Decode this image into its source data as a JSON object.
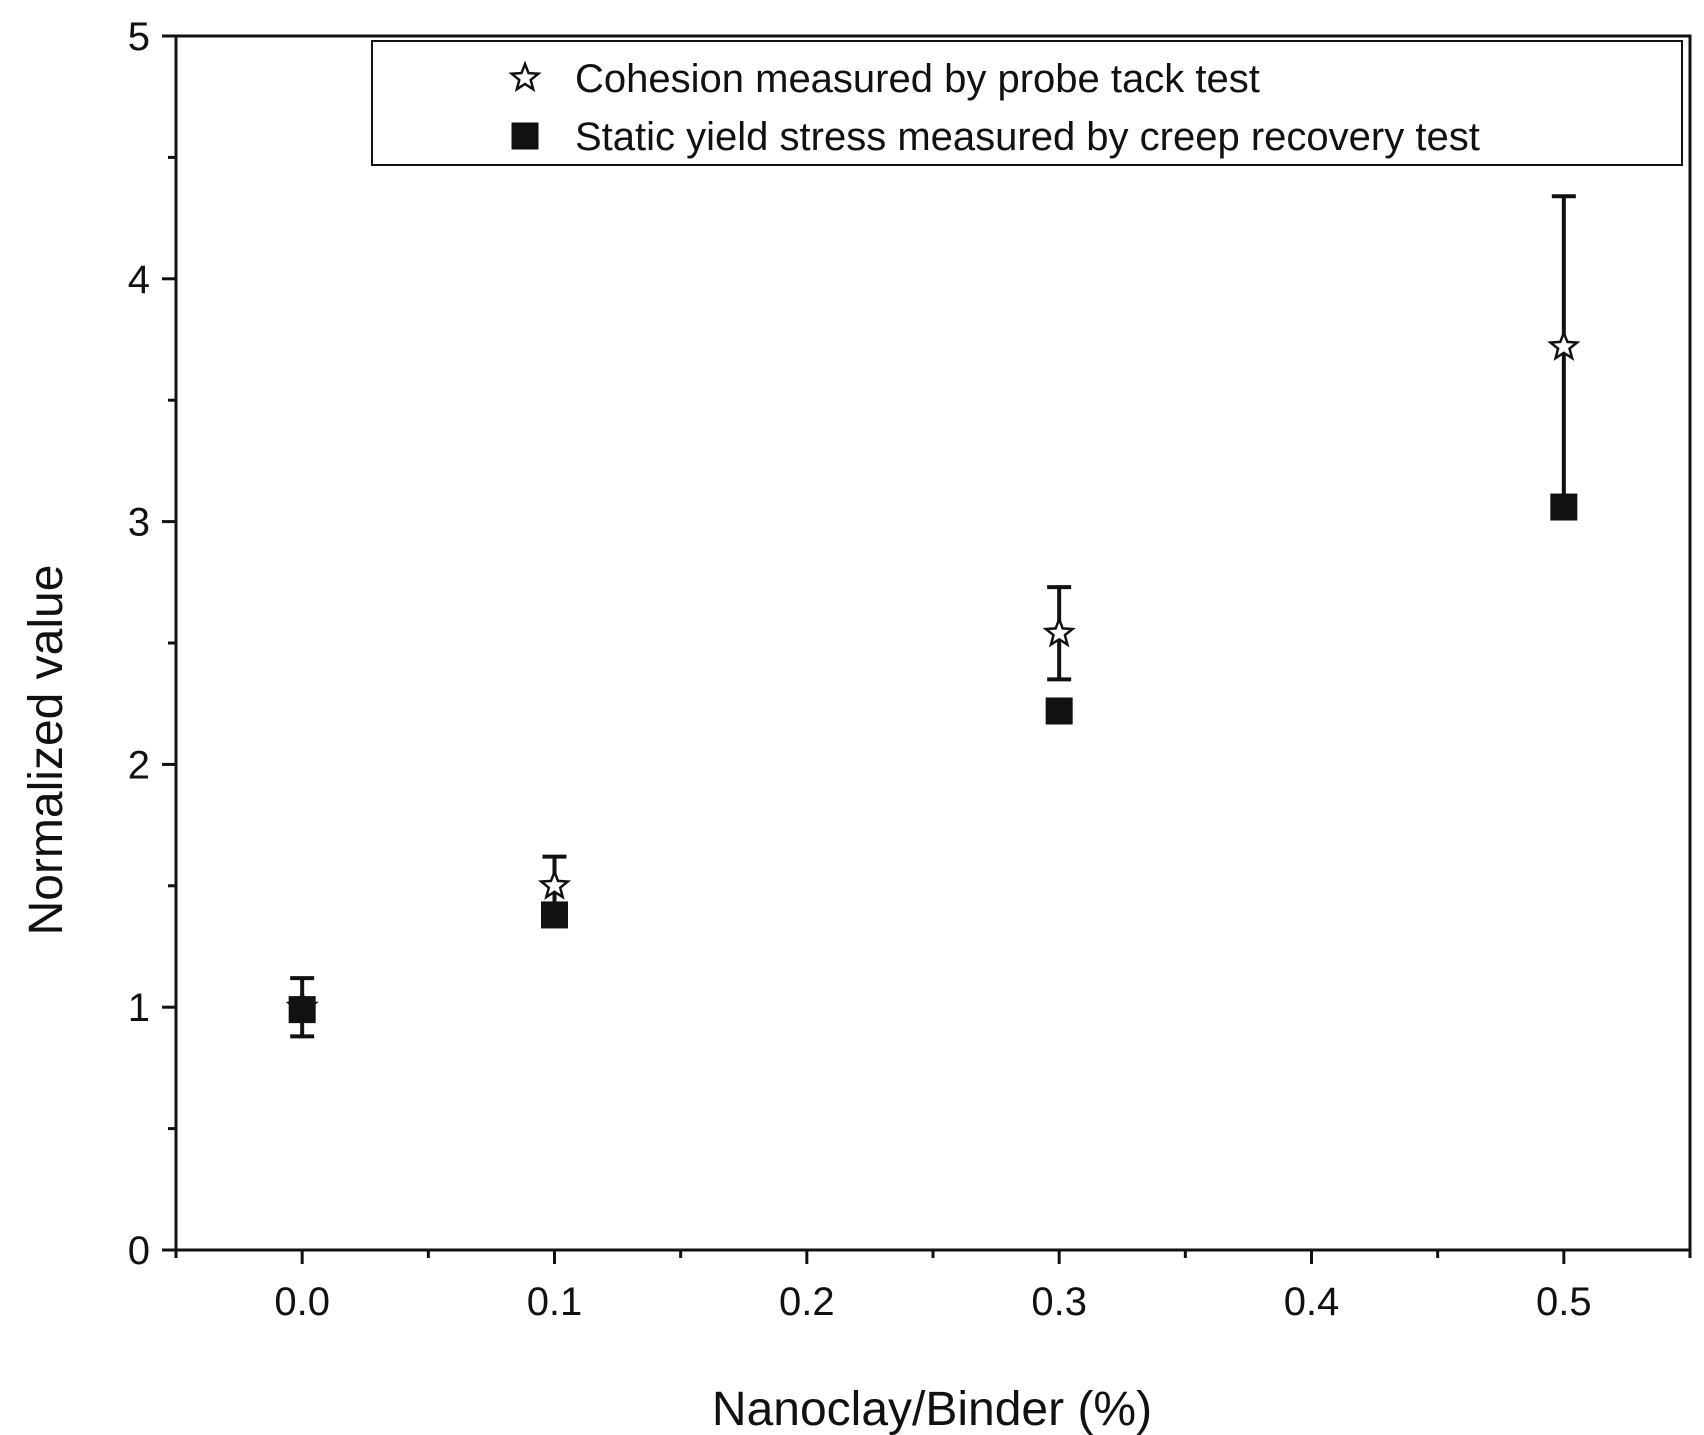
{
  "chart_data": {
    "type": "scatter",
    "title": "",
    "xlabel": "Nanoclay/Binder (%)",
    "ylabel": "Normalized value",
    "xlim": [
      -0.05,
      0.55
    ],
    "ylim": [
      0,
      5
    ],
    "xticks": [
      "0.0",
      "0.1",
      "0.2",
      "0.3",
      "0.4",
      "0.5"
    ],
    "yticks": [
      "0",
      "1",
      "2",
      "3",
      "4",
      "5"
    ],
    "grid": false,
    "legend_position": "top-right",
    "series": [
      {
        "name": "Cohesion measured by probe tack test",
        "marker": "star",
        "color": "#000000",
        "x": [
          0.0,
          0.1,
          0.3,
          0.5
        ],
        "y": [
          1.0,
          1.5,
          2.54,
          3.72
        ],
        "error": [
          0.12,
          0.12,
          0.19,
          0.62
        ]
      },
      {
        "name": "Static yield stress measured by creep recovery test",
        "marker": "square",
        "color": "#000000",
        "x": [
          0.0,
          0.1,
          0.3,
          0.5
        ],
        "y": [
          0.99,
          1.38,
          2.22,
          3.06
        ],
        "error": [
          0.02,
          0.02,
          0.03,
          0.03
        ]
      }
    ]
  }
}
